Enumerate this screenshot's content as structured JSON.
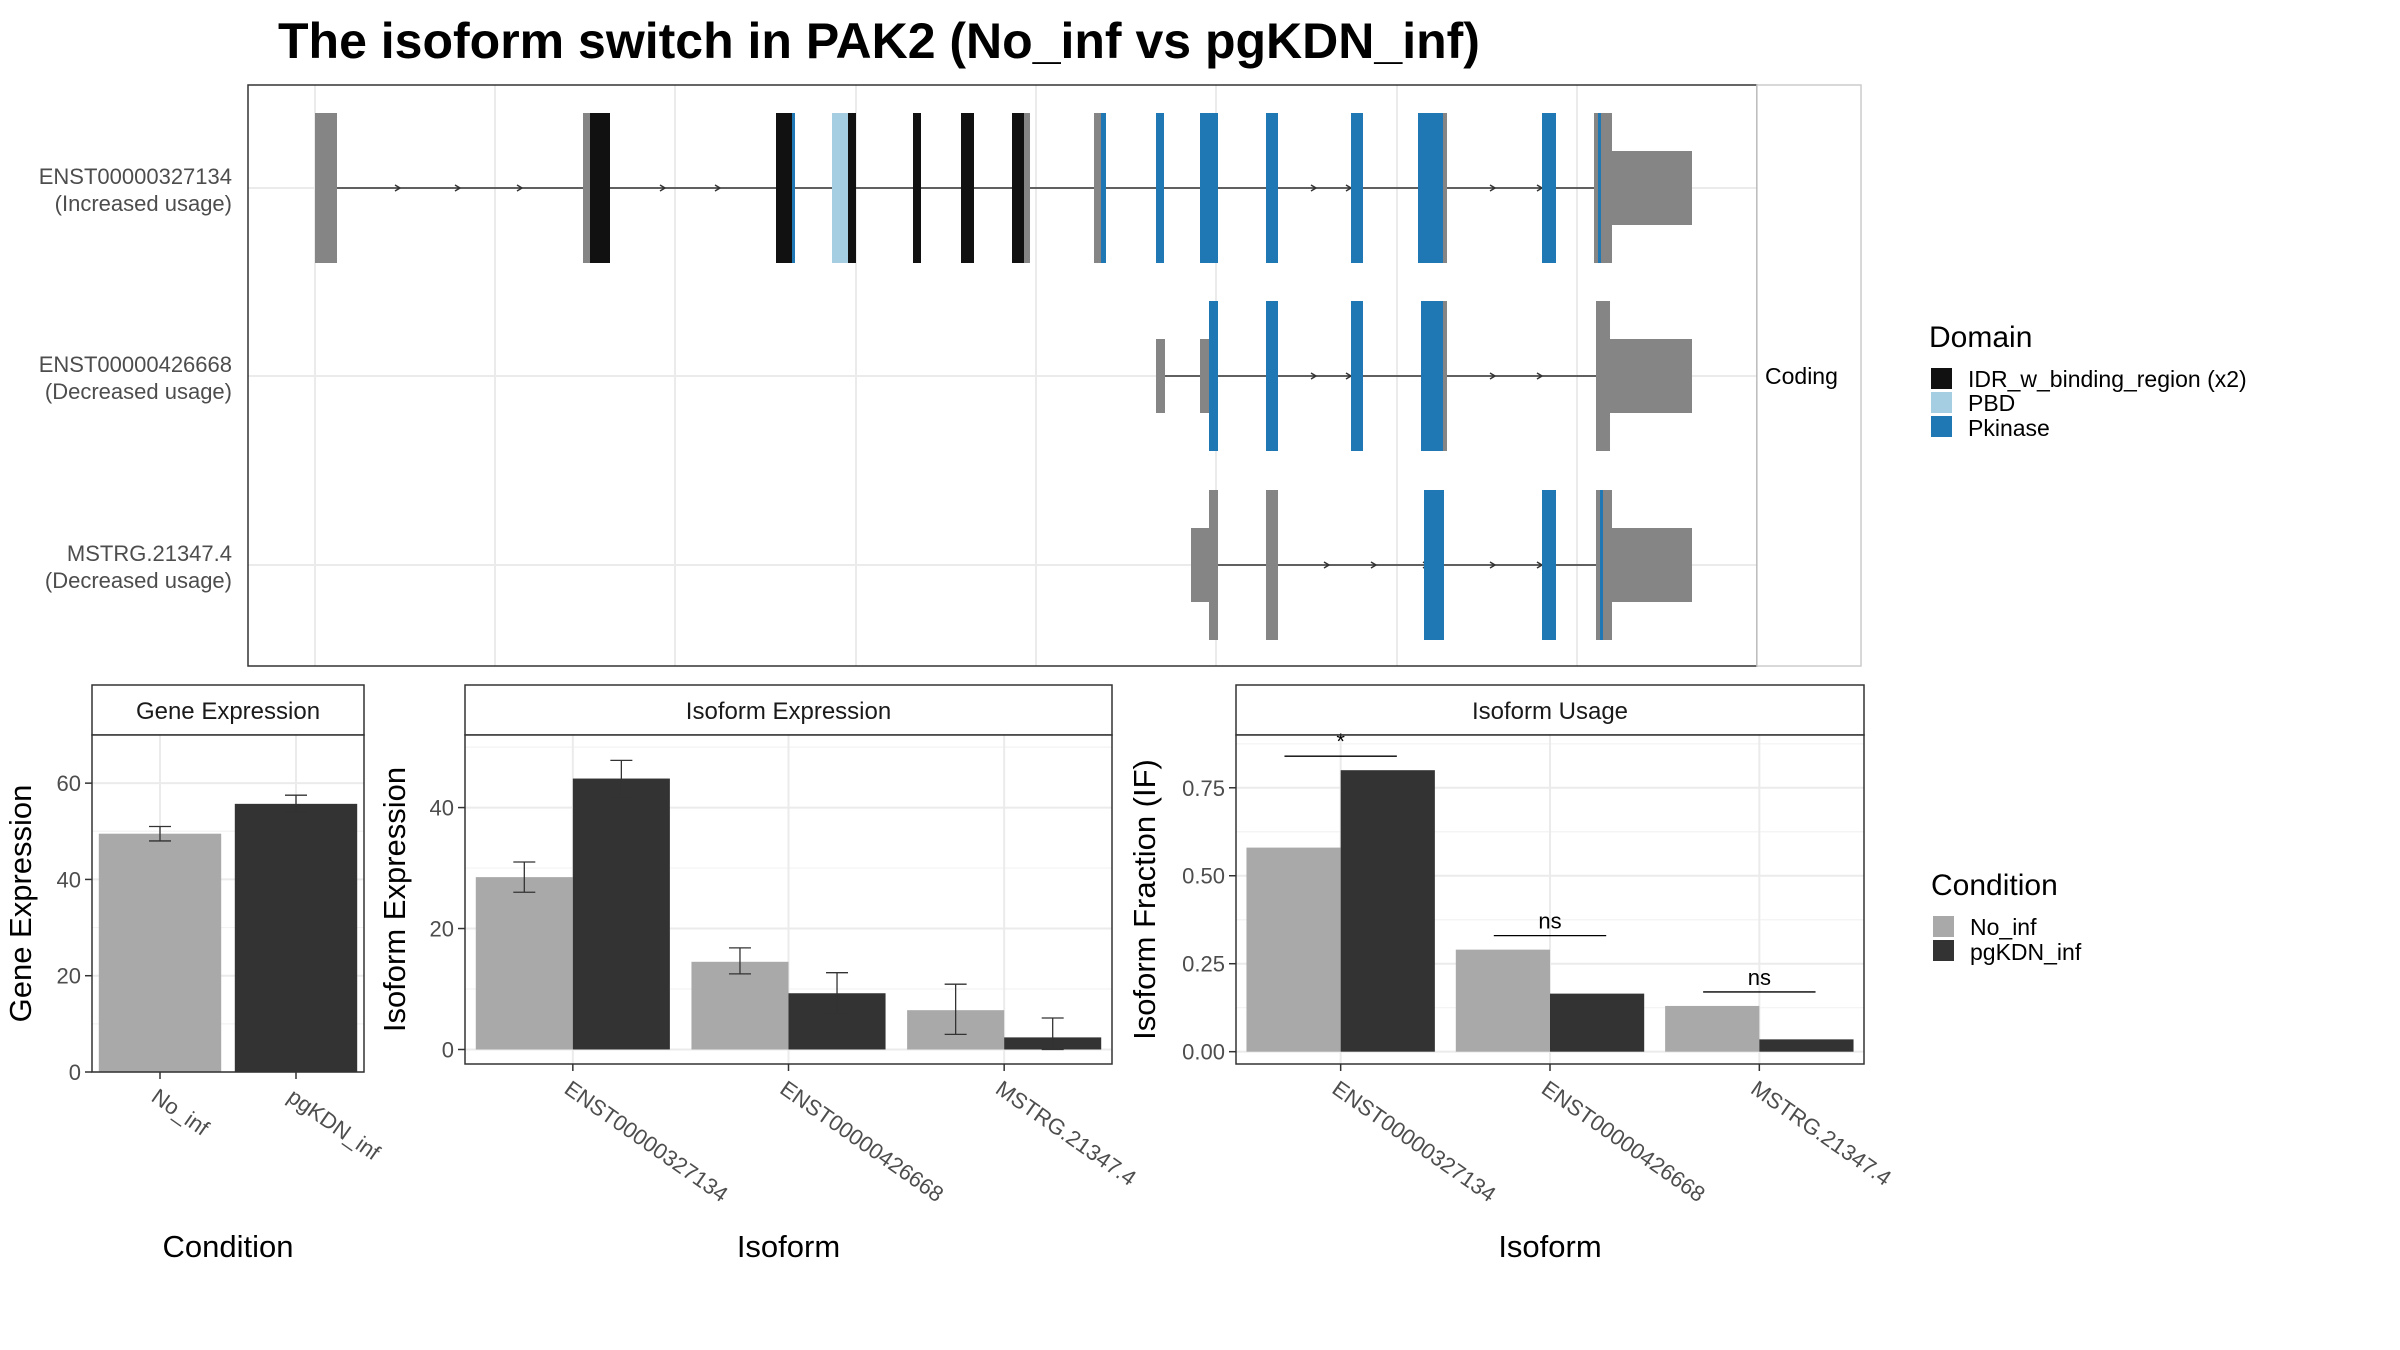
{
  "title": "The isoform switch in PAK2 (No_inf vs pgKDN_inf)",
  "colors": {
    "exon": "#858585",
    "IDR_w_binding_region (x2)": "#111111",
    "PBD": "#a6cee3",
    "Pkinase": "#1f78b4",
    "No_inf": "#a9a9a9",
    "pgKDN_inf": "#333333"
  },
  "chart_data": [
    {
      "type": "gene-structure",
      "strip_label": "Coding",
      "transcripts": [
        {
          "id": "ENST00000327134",
          "label": "(Increased usage)"
        },
        {
          "id": "ENST00000426668",
          "label": "(Decreased usage)"
        },
        {
          "id": "MSTRG.21347.4",
          "label": "(Decreased usage)"
        }
      ],
      "legend": {
        "title": "Domain",
        "entries": [
          "IDR_w_binding_region (x2)",
          "PBD",
          "Pkinase"
        ]
      }
    },
    {
      "type": "bar",
      "panel": "Gene Expression",
      "xlabel": "Condition",
      "ylabel": "Gene Expression",
      "categories": [
        "No_inf",
        "pgKDN_inf"
      ],
      "values": [
        49.5,
        55.7
      ],
      "errors": [
        [
          48.0,
          51.0
        ],
        [
          54.0,
          57.5
        ]
      ],
      "ylim": [
        0,
        70
      ],
      "yticks": [
        0,
        20,
        40,
        60
      ]
    },
    {
      "type": "bar",
      "panel": "Isoform Expression",
      "xlabel": "Isoform",
      "ylabel": "Isoform Expression",
      "categories": [
        "ENST00000327134",
        "ENST00000426668",
        "MSTRG.21347.4"
      ],
      "series": [
        {
          "name": "No_inf",
          "values": [
            28.5,
            14.5,
            6.5
          ],
          "errors": [
            [
              26.0,
              31.0
            ],
            [
              12.5,
              16.8
            ],
            [
              2.5,
              10.8
            ]
          ]
        },
        {
          "name": "pgKDN_inf",
          "values": [
            44.8,
            9.3,
            2.0
          ],
          "errors": [
            [
              41.8,
              47.8
            ],
            [
              6.0,
              12.7
            ],
            [
              0.0,
              5.2
            ]
          ]
        }
      ],
      "ylim": [
        -2.4,
        52
      ],
      "yticks": [
        0,
        20,
        40
      ]
    },
    {
      "type": "bar",
      "panel": "Isoform Usage",
      "xlabel": "Isoform",
      "ylabel": "Isoform Fraction (IF)",
      "categories": [
        "ENST00000327134",
        "ENST00000426668",
        "MSTRG.21347.4"
      ],
      "series": [
        {
          "name": "No_inf",
          "values": [
            0.58,
            0.29,
            0.13
          ]
        },
        {
          "name": "pgKDN_inf",
          "values": [
            0.8,
            0.165,
            0.035
          ]
        }
      ],
      "significance": [
        "*",
        "ns",
        "ns"
      ],
      "ylim": [
        -0.035,
        0.9
      ],
      "yticks": [
        0.0,
        0.25,
        0.5,
        0.75
      ],
      "yticklabels": [
        "0.00",
        "0.25",
        "0.50",
        "0.75"
      ]
    }
  ],
  "condition_legend": {
    "title": "Condition",
    "entries": [
      "No_inf",
      "pgKDN_inf"
    ]
  }
}
